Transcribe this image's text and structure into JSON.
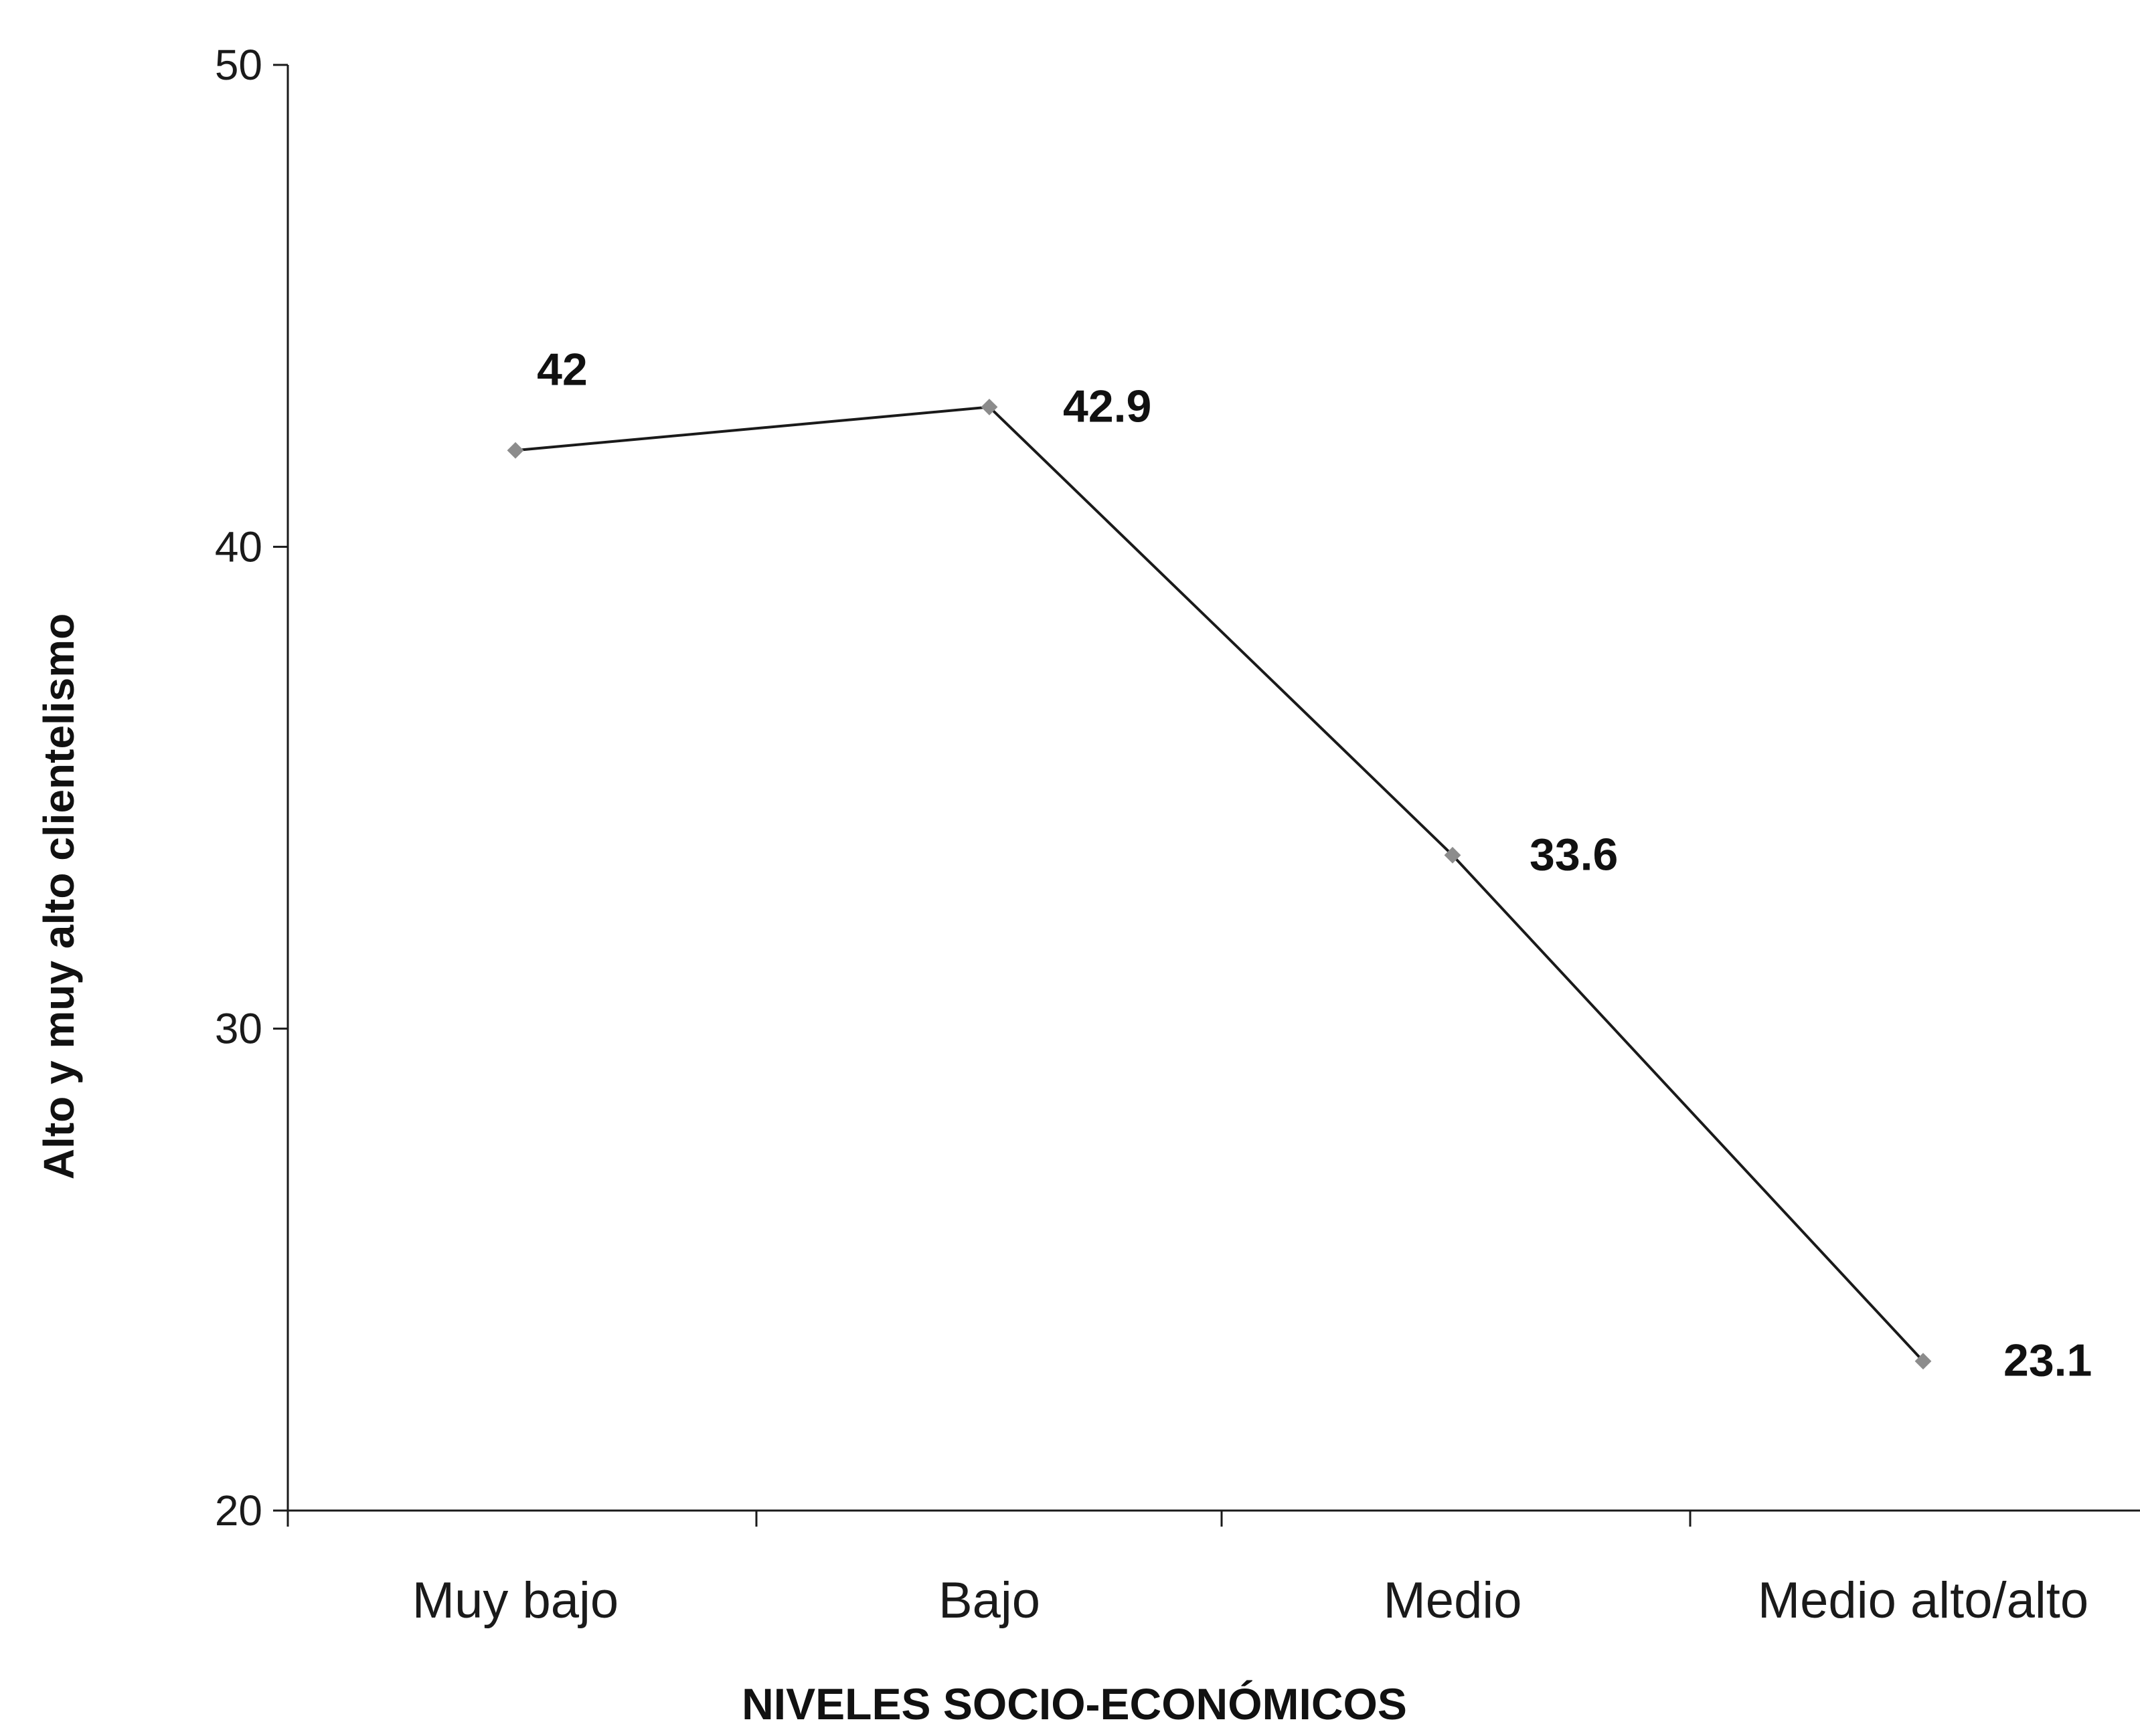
{
  "chart_data": {
    "type": "line",
    "title": "",
    "xlabel": "NIVELES SOCIO-ECONÓMICOS",
    "ylabel": "Alto y muy alto clientelismo",
    "categories": [
      "Muy bajo",
      "Bajo",
      "Medio",
      "Medio alto/alto"
    ],
    "series": [
      {
        "values": [
          42,
          42.9,
          33.6,
          23.1
        ],
        "data_labels": [
          "42",
          "42.9",
          "33.6",
          "23.1"
        ]
      }
    ],
    "ylim": [
      20,
      50
    ],
    "yticks": [
      20,
      30,
      40,
      50
    ],
    "ytick_labels": [
      "20",
      "30",
      "40",
      "50"
    ],
    "grid": false,
    "legend": "none",
    "line_color": "#1a1a1a",
    "marker_color": "#8c8c8c"
  }
}
